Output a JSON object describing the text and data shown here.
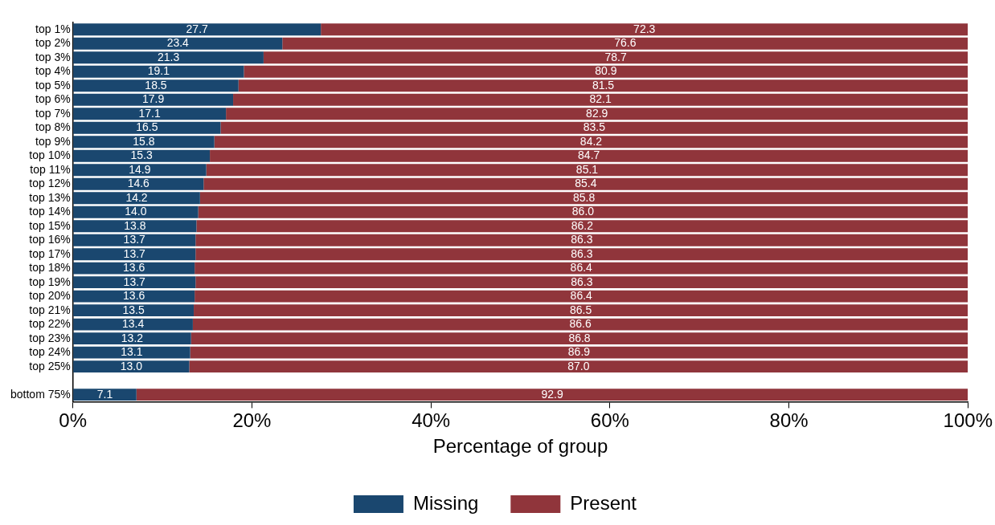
{
  "chart_data": {
    "type": "bar",
    "orientation": "horizontal",
    "stacked": true,
    "xlabel": "Percentage of group",
    "categories": [
      "top 1%",
      "top 2%",
      "top 3%",
      "top 4%",
      "top 5%",
      "top 6%",
      "top 7%",
      "top 8%",
      "top 9%",
      "top 10%",
      "top 11%",
      "top 12%",
      "top 13%",
      "top 14%",
      "top 15%",
      "top 16%",
      "top 17%",
      "top 18%",
      "top 19%",
      "top 20%",
      "top 21%",
      "top 22%",
      "top 23%",
      "top 24%",
      "top 25%",
      null,
      "bottom 75%"
    ],
    "series": [
      {
        "name": "Missing",
        "color": "#1a476f",
        "values": [
          27.7,
          23.4,
          21.3,
          19.1,
          18.5,
          17.9,
          17.1,
          16.5,
          15.8,
          15.3,
          14.9,
          14.6,
          14.2,
          14.0,
          13.8,
          13.7,
          13.7,
          13.6,
          13.7,
          13.6,
          13.5,
          13.4,
          13.2,
          13.1,
          13.0,
          null,
          7.1
        ],
        "value_labels": [
          "27.7",
          "23.4",
          "21.3",
          "19.1",
          "18.5",
          "17.9",
          "17.1",
          "16.5",
          "15.8",
          "15.3",
          "14.9",
          "14.6",
          "14.2",
          "14.0",
          "13.8",
          "13.7",
          "13.7",
          "13.6",
          "13.7",
          "13.6",
          "13.5",
          "13.4",
          "13.2",
          "13.1",
          "13.0",
          null,
          "7.1"
        ]
      },
      {
        "name": "Present",
        "color": "#90353b",
        "values": [
          72.3,
          76.6,
          78.7,
          80.9,
          81.5,
          82.1,
          82.9,
          83.5,
          84.2,
          84.7,
          85.1,
          85.4,
          85.8,
          86.0,
          86.2,
          86.3,
          86.3,
          86.4,
          86.3,
          86.4,
          86.5,
          86.6,
          86.8,
          86.9,
          87.0,
          null,
          92.9
        ],
        "value_labels": [
          "72.3",
          "76.6",
          "78.7",
          "80.9",
          "81.5",
          "82.1",
          "82.9",
          "83.5",
          "84.2",
          "84.7",
          "85.1",
          "85.4",
          "85.8",
          "86.0",
          "86.2",
          "86.3",
          "86.3",
          "86.4",
          "86.3",
          "86.4",
          "86.5",
          "86.6",
          "86.8",
          "86.9",
          "87.0",
          null,
          "92.9"
        ]
      }
    ],
    "xlim": [
      0,
      100
    ],
    "xticks": [
      {
        "value": 0,
        "label": "0%"
      },
      {
        "value": 20,
        "label": "20%"
      },
      {
        "value": 40,
        "label": "40%"
      },
      {
        "value": 60,
        "label": "60%"
      },
      {
        "value": 80,
        "label": "80%"
      },
      {
        "value": 100,
        "label": "100%"
      }
    ],
    "grid": false,
    "legend": "bottom"
  }
}
